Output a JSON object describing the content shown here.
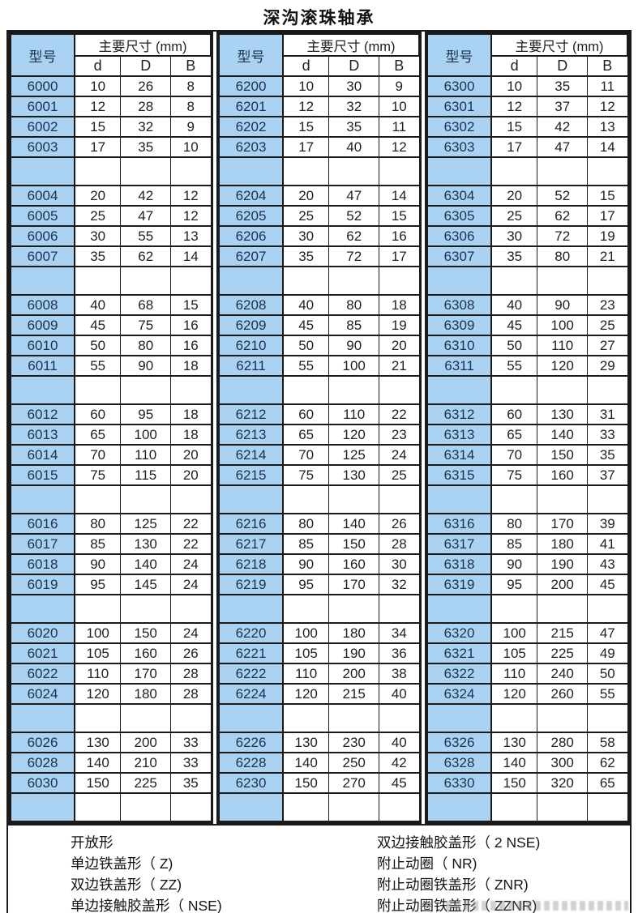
{
  "title": "深沟滚珠轴承",
  "colors": {
    "cell_blue": "#a9d2f3",
    "model_text": "#1c3050",
    "border": "#1a1a1a",
    "text": "#1f1f1f"
  },
  "table": {
    "model_header": "型号",
    "dims_header": "主要尺寸 (mm)",
    "sub_headers": [
      "d",
      "D",
      "B"
    ],
    "sections": [
      {
        "series": "6000",
        "rows": [
          [
            "6000",
            "10",
            "26",
            "8"
          ],
          [
            "6001",
            "12",
            "28",
            "8"
          ],
          [
            "6002",
            "15",
            "32",
            "9"
          ],
          [
            "6003",
            "17",
            "35",
            "10"
          ],
          null,
          [
            "6004",
            "20",
            "42",
            "12"
          ],
          [
            "6005",
            "25",
            "47",
            "12"
          ],
          [
            "6006",
            "30",
            "55",
            "13"
          ],
          [
            "6007",
            "35",
            "62",
            "14"
          ],
          null,
          [
            "6008",
            "40",
            "68",
            "15"
          ],
          [
            "6009",
            "45",
            "75",
            "16"
          ],
          [
            "6010",
            "50",
            "80",
            "16"
          ],
          [
            "6011",
            "55",
            "90",
            "18"
          ],
          null,
          [
            "6012",
            "60",
            "95",
            "18"
          ],
          [
            "6013",
            "65",
            "100",
            "18"
          ],
          [
            "6014",
            "70",
            "110",
            "20"
          ],
          [
            "6015",
            "75",
            "115",
            "20"
          ],
          null,
          [
            "6016",
            "80",
            "125",
            "22"
          ],
          [
            "6017",
            "85",
            "130",
            "22"
          ],
          [
            "6018",
            "90",
            "140",
            "24"
          ],
          [
            "6019",
            "95",
            "145",
            "24"
          ],
          null,
          [
            "6020",
            "100",
            "150",
            "24"
          ],
          [
            "6021",
            "105",
            "160",
            "26"
          ],
          [
            "6022",
            "110",
            "170",
            "28"
          ],
          [
            "6024",
            "120",
            "180",
            "28"
          ],
          null,
          [
            "6026",
            "130",
            "200",
            "33"
          ],
          [
            "6028",
            "140",
            "210",
            "33"
          ],
          [
            "6030",
            "150",
            "225",
            "35"
          ],
          null
        ]
      },
      {
        "series": "6200",
        "rows": [
          [
            "6200",
            "10",
            "30",
            "9"
          ],
          [
            "6201",
            "12",
            "32",
            "10"
          ],
          [
            "6202",
            "15",
            "35",
            "11"
          ],
          [
            "6203",
            "17",
            "40",
            "12"
          ],
          null,
          [
            "6204",
            "20",
            "47",
            "14"
          ],
          [
            "6205",
            "25",
            "52",
            "15"
          ],
          [
            "6206",
            "30",
            "62",
            "16"
          ],
          [
            "6207",
            "35",
            "72",
            "17"
          ],
          null,
          [
            "6208",
            "40",
            "80",
            "18"
          ],
          [
            "6209",
            "45",
            "85",
            "19"
          ],
          [
            "6210",
            "50",
            "90",
            "20"
          ],
          [
            "6211",
            "55",
            "100",
            "21"
          ],
          null,
          [
            "6212",
            "60",
            "110",
            "22"
          ],
          [
            "6213",
            "65",
            "120",
            "23"
          ],
          [
            "6214",
            "70",
            "125",
            "24"
          ],
          [
            "6215",
            "75",
            "130",
            "25"
          ],
          null,
          [
            "6216",
            "80",
            "140",
            "26"
          ],
          [
            "6217",
            "85",
            "150",
            "28"
          ],
          [
            "6218",
            "90",
            "160",
            "30"
          ],
          [
            "6219",
            "95",
            "170",
            "32"
          ],
          null,
          [
            "6220",
            "100",
            "180",
            "34"
          ],
          [
            "6221",
            "105",
            "190",
            "36"
          ],
          [
            "6222",
            "110",
            "200",
            "38"
          ],
          [
            "6224",
            "120",
            "215",
            "40"
          ],
          null,
          [
            "6226",
            "130",
            "230",
            "40"
          ],
          [
            "6228",
            "140",
            "250",
            "42"
          ],
          [
            "6230",
            "150",
            "270",
            "45"
          ],
          null
        ]
      },
      {
        "series": "6300",
        "rows": [
          [
            "6300",
            "10",
            "35",
            "11"
          ],
          [
            "6301",
            "12",
            "37",
            "12"
          ],
          [
            "6302",
            "15",
            "42",
            "13"
          ],
          [
            "6303",
            "17",
            "47",
            "14"
          ],
          null,
          [
            "6304",
            "20",
            "52",
            "15"
          ],
          [
            "6305",
            "25",
            "62",
            "17"
          ],
          [
            "6306",
            "30",
            "72",
            "19"
          ],
          [
            "6307",
            "35",
            "80",
            "21"
          ],
          null,
          [
            "6308",
            "40",
            "90",
            "23"
          ],
          [
            "6309",
            "45",
            "100",
            "25"
          ],
          [
            "6310",
            "50",
            "110",
            "27"
          ],
          [
            "6311",
            "55",
            "120",
            "29"
          ],
          null,
          [
            "6312",
            "60",
            "130",
            "31"
          ],
          [
            "6313",
            "65",
            "140",
            "33"
          ],
          [
            "6314",
            "70",
            "150",
            "35"
          ],
          [
            "6315",
            "75",
            "160",
            "37"
          ],
          null,
          [
            "6316",
            "80",
            "170",
            "39"
          ],
          [
            "6317",
            "85",
            "180",
            "41"
          ],
          [
            "6318",
            "90",
            "190",
            "43"
          ],
          [
            "6319",
            "95",
            "200",
            "45"
          ],
          null,
          [
            "6320",
            "100",
            "215",
            "47"
          ],
          [
            "6321",
            "105",
            "225",
            "49"
          ],
          [
            "6322",
            "110",
            "240",
            "50"
          ],
          [
            "6324",
            "120",
            "260",
            "55"
          ],
          null,
          [
            "6326",
            "130",
            "280",
            "58"
          ],
          [
            "6328",
            "140",
            "300",
            "62"
          ],
          [
            "6330",
            "150",
            "320",
            "65"
          ],
          null
        ]
      }
    ]
  },
  "legend": {
    "left": [
      "开放形",
      "单边铁盖形（ Z)",
      "双边铁盖形（ ZZ)",
      "单边接触胶盖形（ NSE)"
    ],
    "right": [
      "双边接触胶盖形（ 2 NSE)",
      "附止动圈（ NR)",
      "附止动圈铁盖形（ ZNR)",
      "附止动圈铁盖形（ ZZNR)"
    ]
  }
}
